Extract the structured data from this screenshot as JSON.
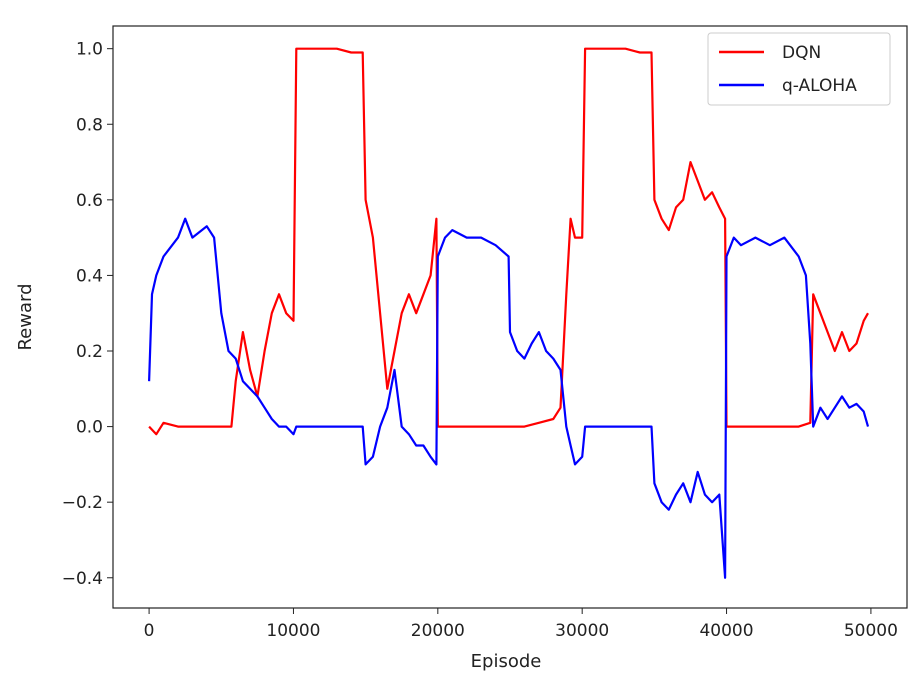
{
  "chart_data": {
    "type": "line",
    "xlabel": "Episode",
    "ylabel": "Reward",
    "xlim": [
      -2500,
      52500
    ],
    "ylim": [
      -0.48,
      1.06
    ],
    "x_ticks": [
      0,
      10000,
      20000,
      30000,
      40000,
      50000
    ],
    "x_tick_labels": [
      "0",
      "10000",
      "20000",
      "30000",
      "40000",
      "50000"
    ],
    "y_ticks": [
      -0.4,
      -0.2,
      0.0,
      0.2,
      0.4,
      0.6,
      0.8,
      1.0
    ],
    "y_tick_labels": [
      "−0.4",
      "−0.2",
      "0.0",
      "0.2",
      "0.4",
      "0.6",
      "0.8",
      "1.0"
    ],
    "grid": false,
    "legend_position": "top-right",
    "series": [
      {
        "name": "DQN",
        "color": "#ff0000",
        "x": [
          0,
          500,
          1000,
          2000,
          3000,
          4000,
          5000,
          5700,
          6000,
          6500,
          7000,
          7500,
          8000,
          8500,
          9000,
          9500,
          10000,
          10200,
          11000,
          12000,
          13000,
          14000,
          14800,
          15000,
          15500,
          16000,
          16500,
          17000,
          17500,
          18000,
          18500,
          19000,
          19500,
          19900,
          20000,
          20200,
          21000,
          22000,
          23000,
          24000,
          25000,
          26000,
          27000,
          28000,
          28500,
          28900,
          29200,
          29500,
          30000,
          30200,
          31000,
          32000,
          33000,
          34000,
          34800,
          35000,
          35500,
          36000,
          36500,
          37000,
          37500,
          38000,
          38500,
          39000,
          39500,
          39900,
          40000,
          40200,
          41000,
          42000,
          43000,
          44000,
          45000,
          45800,
          46000,
          46500,
          47000,
          47500,
          48000,
          48500,
          49000,
          49500,
          49800
        ],
        "values": [
          0.0,
          -0.02,
          0.01,
          0.0,
          0.0,
          0.0,
          0.0,
          0.0,
          0.12,
          0.25,
          0.15,
          0.08,
          0.2,
          0.3,
          0.35,
          0.3,
          0.28,
          1.0,
          1.0,
          1.0,
          1.0,
          0.99,
          0.99,
          0.6,
          0.5,
          0.3,
          0.1,
          0.2,
          0.3,
          0.35,
          0.3,
          0.35,
          0.4,
          0.55,
          0.0,
          0.0,
          0.0,
          0.0,
          0.0,
          0.0,
          0.0,
          0.0,
          0.01,
          0.02,
          0.05,
          0.35,
          0.55,
          0.5,
          0.5,
          1.0,
          1.0,
          1.0,
          1.0,
          0.99,
          0.99,
          0.6,
          0.55,
          0.52,
          0.58,
          0.6,
          0.7,
          0.65,
          0.6,
          0.62,
          0.58,
          0.55,
          0.0,
          0.0,
          0.0,
          0.0,
          0.0,
          0.0,
          0.0,
          0.01,
          0.35,
          0.3,
          0.25,
          0.2,
          0.25,
          0.2,
          0.22,
          0.28,
          0.3
        ]
      },
      {
        "name": "q-ALOHA",
        "color": "#0000ff",
        "x": [
          0,
          200,
          500,
          1000,
          2000,
          2500,
          3000,
          4000,
          4500,
          5000,
          5500,
          6000,
          6500,
          7000,
          7500,
          8000,
          8500,
          9000,
          9500,
          10000,
          10200,
          11000,
          12000,
          13000,
          14000,
          14800,
          15000,
          15500,
          16000,
          16500,
          17000,
          17500,
          18000,
          18500,
          19000,
          19500,
          19900,
          20000,
          20500,
          21000,
          22000,
          23000,
          24000,
          24900,
          25000,
          25500,
          26000,
          26500,
          27000,
          27500,
          28000,
          28500,
          28900,
          29200,
          29500,
          30000,
          30200,
          31000,
          32000,
          33000,
          34000,
          34800,
          35000,
          35500,
          36000,
          36500,
          37000,
          37500,
          38000,
          38500,
          39000,
          39500,
          39900,
          40000,
          40500,
          41000,
          42000,
          43000,
          44000,
          45000,
          45500,
          45800,
          46000,
          46500,
          47000,
          47500,
          48000,
          48500,
          49000,
          49500,
          49800
        ],
        "values": [
          0.12,
          0.35,
          0.4,
          0.45,
          0.5,
          0.55,
          0.5,
          0.53,
          0.5,
          0.3,
          0.2,
          0.18,
          0.12,
          0.1,
          0.08,
          0.05,
          0.02,
          0.0,
          0.0,
          -0.02,
          0.0,
          0.0,
          0.0,
          0.0,
          0.0,
          0.0,
          -0.1,
          -0.08,
          0.0,
          0.05,
          0.15,
          0.0,
          -0.02,
          -0.05,
          -0.05,
          -0.08,
          -0.1,
          0.45,
          0.5,
          0.52,
          0.5,
          0.5,
          0.48,
          0.45,
          0.25,
          0.2,
          0.18,
          0.22,
          0.25,
          0.2,
          0.18,
          0.15,
          0.0,
          -0.05,
          -0.1,
          -0.08,
          0.0,
          0.0,
          0.0,
          0.0,
          0.0,
          0.0,
          -0.15,
          -0.2,
          -0.22,
          -0.18,
          -0.15,
          -0.2,
          -0.12,
          -0.18,
          -0.2,
          -0.18,
          -0.4,
          0.45,
          0.5,
          0.48,
          0.5,
          0.48,
          0.5,
          0.45,
          0.4,
          0.22,
          0.0,
          0.05,
          0.02,
          0.05,
          0.08,
          0.05,
          0.06,
          0.04,
          0.0
        ]
      }
    ]
  }
}
